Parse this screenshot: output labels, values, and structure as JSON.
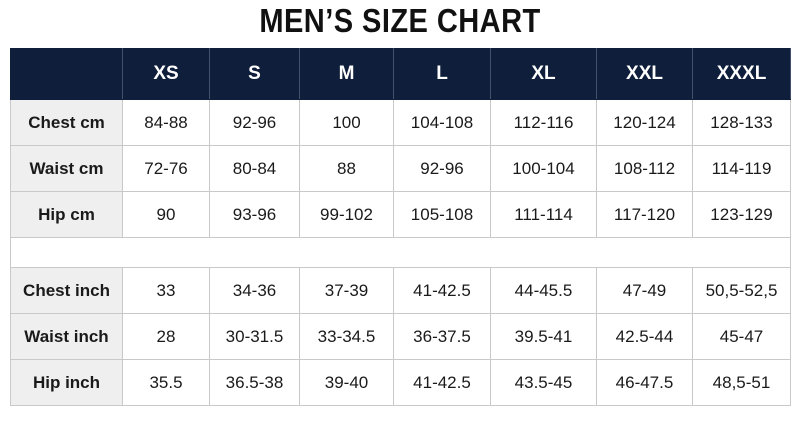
{
  "header": {
    "title": "MEN’S SIZE CHART"
  },
  "table": {
    "columns": [
      "XS",
      "S",
      "M",
      "L",
      "XL",
      "XXL",
      "XXXL"
    ],
    "rows": [
      [
        "Chest cm",
        "84-88",
        "92-96",
        "100",
        "104-108",
        "112-116",
        "120-124",
        "128-133"
      ],
      [
        "Waist cm",
        "72-76",
        "80-84",
        "88",
        "92-96",
        "100-104",
        "108-112",
        "114-119"
      ],
      [
        "Hip cm",
        "90",
        "93-96",
        "99-102",
        "105-108",
        "111-114",
        "117-120",
        "123-129"
      ],
      [
        "Chest inch",
        "33",
        "34-36",
        "37-39",
        "41-42.5",
        "44-45.5",
        "47-49",
        "50,5-52,5"
      ],
      [
        "Waist inch",
        "28",
        "30-31.5",
        "33-34.5",
        "36-37.5",
        "39.5-41",
        "42.5-44",
        "45-47"
      ],
      [
        "Hip inch",
        "35.5",
        "36.5-38",
        "39-40",
        "41-42.5",
        "43.5-45",
        "46-47.5",
        "48,5-51"
      ]
    ]
  }
}
